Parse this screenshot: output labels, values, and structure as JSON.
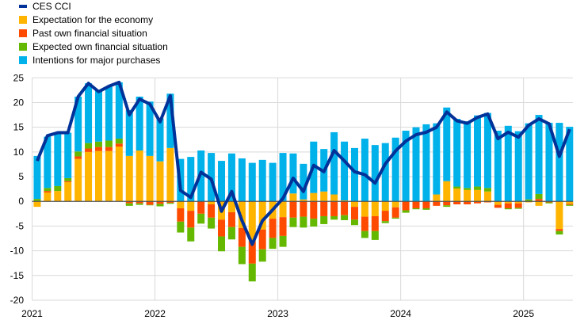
{
  "chart_data": {
    "type": "bar",
    "stacked": true,
    "title": "",
    "xlabel": "",
    "ylabel": "",
    "ylim": [
      -20,
      25
    ],
    "yticks": [
      25,
      20,
      15,
      10,
      5,
      0,
      -5,
      -10,
      -15,
      -20
    ],
    "xtick_labels": [
      "2021",
      "2022",
      "2023",
      "2024",
      "2025"
    ],
    "grid": true,
    "legend_position": "top-left",
    "start": "2021-01",
    "months": [
      "2021-01",
      "2021-02",
      "2021-03",
      "2021-04",
      "2021-05",
      "2021-06",
      "2021-07",
      "2021-08",
      "2021-09",
      "2021-10",
      "2021-11",
      "2021-12",
      "2022-01",
      "2022-02",
      "2022-03",
      "2022-04",
      "2022-05",
      "2022-06",
      "2022-07",
      "2022-08",
      "2022-09",
      "2022-10",
      "2022-11",
      "2022-12",
      "2023-01",
      "2023-02",
      "2023-03",
      "2023-04",
      "2023-05",
      "2023-06",
      "2023-07",
      "2023-08",
      "2023-09",
      "2023-10",
      "2023-11",
      "2023-12",
      "2024-01",
      "2024-02",
      "2024-03",
      "2024-04",
      "2024-05",
      "2024-06",
      "2024-07",
      "2024-08",
      "2024-09",
      "2024-10",
      "2024-11",
      "2024-12",
      "2025-01",
      "2025-02",
      "2025-03",
      "2025-04",
      "2025-05"
    ],
    "line": {
      "name": "CES CCI",
      "color": "#003299",
      "values": [
        8.2,
        13.3,
        13.9,
        13.9,
        21.2,
        23.9,
        22.2,
        23.3,
        24.1,
        17.5,
        20.7,
        19.7,
        16.1,
        21.4,
        2.2,
        0.8,
        5.9,
        4.5,
        -2.0,
        2.0,
        -3.9,
        -8.7,
        -3.9,
        -1.7,
        0.6,
        4.7,
        2.0,
        7.3,
        6.0,
        10.3,
        8.2,
        6.0,
        5.4,
        3.7,
        7.6,
        10.2,
        12.2,
        13.5,
        14.0,
        15.0,
        18.1,
        16.3,
        15.8,
        17.0,
        17.7,
        12.7,
        14.0,
        13.0,
        15.4,
        16.7,
        15.7,
        9.1,
        14.6
      ]
    },
    "series": [
      {
        "name": "Expectation for the economy",
        "color": "#FFB400",
        "values": [
          -1.1,
          1.8,
          2.1,
          3.9,
          8.6,
          10.0,
          10.2,
          10.2,
          11.1,
          9.2,
          10.3,
          9.2,
          8.1,
          10.8,
          -1.4,
          -1.9,
          0,
          -0.6,
          -3.7,
          -2.2,
          -5.4,
          -8.1,
          -5.7,
          -3.5,
          -3.2,
          1.6,
          0.4,
          1.7,
          2.0,
          1.4,
          0.2,
          -1.1,
          -3.1,
          -3.0,
          -1.9,
          -1.2,
          0,
          0,
          0,
          1.4,
          4.1,
          2.6,
          2.3,
          2.3,
          2.0,
          -0.7,
          -0.4,
          -0.4,
          -0.2,
          -0.9,
          0,
          -5.6,
          -0.5
        ]
      },
      {
        "name": "Past own financial situation",
        "color": "#FF4B00",
        "values": [
          0,
          0.3,
          0,
          0.2,
          0.5,
          0.7,
          0.8,
          0.8,
          0.6,
          -0.4,
          -0.4,
          -0.7,
          -0.5,
          -0.3,
          -2.7,
          -3.4,
          -2.5,
          -2.7,
          -3.4,
          -3.0,
          -3.8,
          -4.5,
          -4.0,
          -3.9,
          -3.8,
          -3.3,
          -3.1,
          -3.5,
          -3.0,
          -3.0,
          -2.8,
          -2.6,
          -2.9,
          -3.0,
          -2.1,
          -2.1,
          -1.8,
          -1.4,
          -1.4,
          -0.9,
          -0.8,
          -0.6,
          -0.6,
          -0.4,
          -0.2,
          -0.6,
          -1.0,
          -0.9,
          0,
          0.5,
          -0.2,
          -0.4,
          -0.2
        ]
      },
      {
        "name": "Expected own financial situation",
        "color": "#65B800",
        "values": [
          0.5,
          0.6,
          1.0,
          0.6,
          1.0,
          1.1,
          1.1,
          1.3,
          1.0,
          -0.5,
          -0.3,
          -0.1,
          -0.5,
          -0.2,
          -2.2,
          -2.8,
          -2.0,
          -2.2,
          -3.0,
          -2.5,
          -3.5,
          -3.6,
          -2.5,
          -2.2,
          -2.2,
          -1.9,
          -2.2,
          -1.6,
          -1.6,
          -0.7,
          -1.0,
          -1.1,
          -1.4,
          -1.8,
          -0.4,
          -0.2,
          -0.5,
          -0.2,
          -0.3,
          0,
          -0.3,
          0.4,
          0.4,
          0.7,
          0.7,
          0,
          -0.2,
          -0.2,
          0.4,
          1.0,
          -0.2,
          -0.7,
          -0.2
        ]
      },
      {
        "name": "Intentions for major purchases",
        "color": "#00B1EA",
        "values": [
          8.7,
          10.4,
          10.6,
          9.2,
          11.1,
          12.1,
          10.3,
          10.9,
          11.4,
          9.3,
          10.9,
          11.0,
          8.7,
          11.0,
          8.6,
          9.0,
          10.3,
          9.8,
          8.2,
          9.7,
          8.7,
          7.8,
          8.4,
          7.8,
          9.8,
          8.1,
          7.2,
          10.4,
          8.6,
          12.6,
          11.9,
          10.8,
          12.7,
          11.4,
          11.8,
          12.9,
          14.3,
          15.0,
          15.6,
          14.4,
          14.9,
          13.7,
          13.5,
          14.4,
          15.2,
          14.3,
          15.3,
          14.2,
          15.4,
          16.0,
          15.9,
          15.9,
          15.1
        ]
      }
    ]
  }
}
